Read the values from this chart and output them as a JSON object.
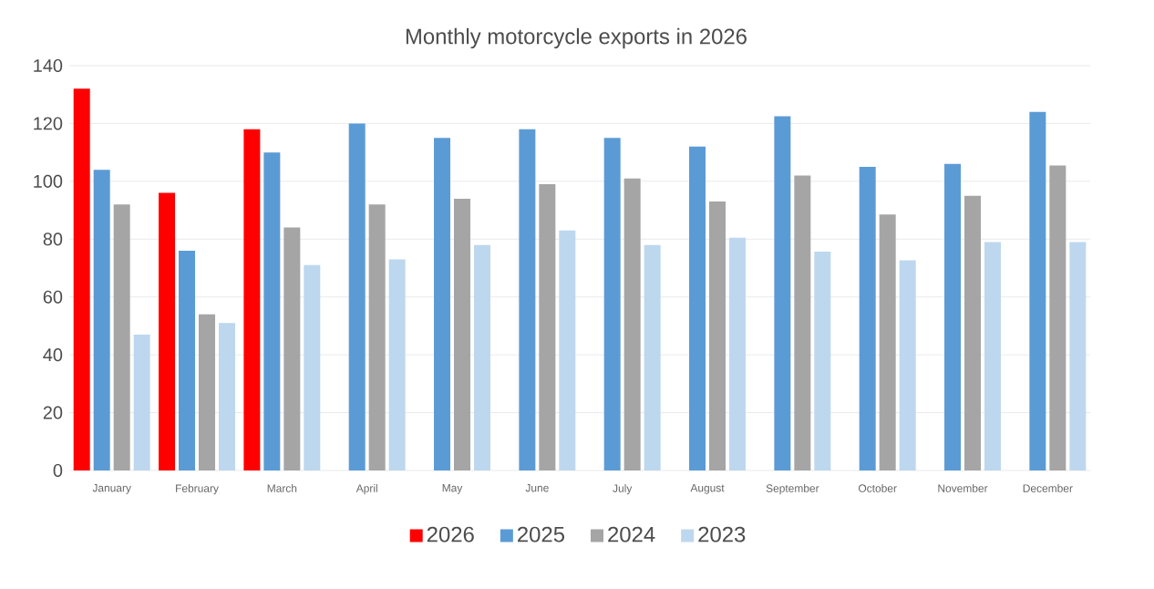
{
  "chart_data": {
    "type": "bar",
    "title": "Monthly motorcycle exports in 2026",
    "categories": [
      "January",
      "February",
      "March",
      "April",
      "May",
      "June",
      "July",
      "August",
      "September",
      "October",
      "November",
      "December"
    ],
    "series": [
      {
        "name": "2026",
        "color": "#ff0000",
        "values": [
          132,
          96,
          118,
          null,
          null,
          null,
          null,
          null,
          null,
          null,
          null,
          null
        ]
      },
      {
        "name": "2025",
        "color": "#5b9bd5",
        "values": [
          104,
          76,
          110,
          120,
          115,
          118,
          115,
          112,
          122.5,
          105,
          106,
          124
        ]
      },
      {
        "name": "2024",
        "color": "#a5a5a5",
        "values": [
          92,
          54,
          84,
          92,
          94,
          99,
          101,
          93,
          102,
          88.5,
          95,
          105.5
        ]
      },
      {
        "name": "2023",
        "color": "#bdd7ee",
        "values": [
          47,
          51,
          71,
          73,
          78,
          83,
          78,
          80.5,
          75.7,
          72.7,
          79,
          79
        ]
      }
    ],
    "ylim": [
      0,
      140
    ],
    "yticks": [
      0,
      20,
      40,
      60,
      80,
      100,
      120,
      140
    ],
    "grid": "y",
    "legend": "bottom"
  }
}
